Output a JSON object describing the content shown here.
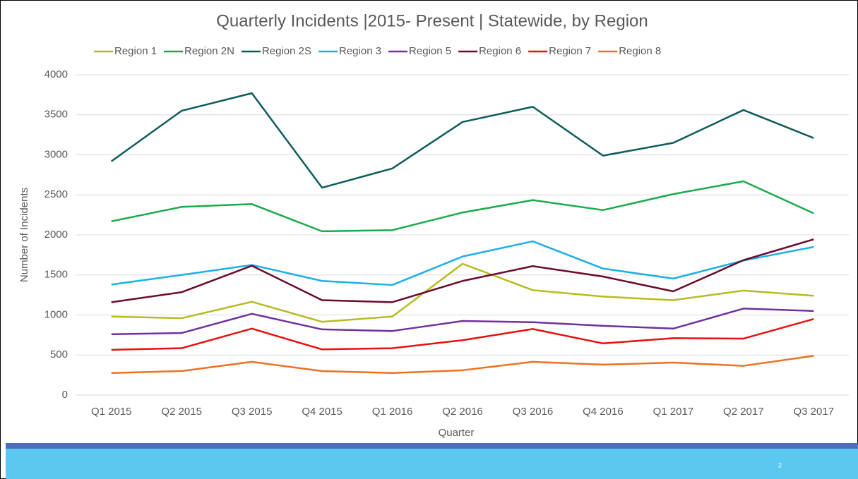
{
  "chart_data": {
    "type": "line",
    "title": "Quarterly Incidents |2015- Present | Statewide, by Region",
    "categories": [
      "Q1 2015",
      "Q2 2015",
      "Q3 2015",
      "Q4 2015",
      "Q1 2016",
      "Q2 2016",
      "Q3 2016",
      "Q4 2016",
      "Q1 2017",
      "Q2 2017",
      "Q3 2017"
    ],
    "series": [
      {
        "name": "Region 1",
        "color": "#b5bd1e",
        "values": [
          980,
          960,
          1165,
          915,
          980,
          1640,
          1310,
          1230,
          1185,
          1305,
          1240
        ]
      },
      {
        "name": "Region 2N",
        "color": "#1aab4b",
        "values": [
          2170,
          2350,
          2385,
          2045,
          2060,
          2280,
          2435,
          2310,
          2510,
          2670,
          2270
        ]
      },
      {
        "name": "Region 2S",
        "color": "#0e5c5c",
        "values": [
          2920,
          3550,
          3770,
          2590,
          2830,
          3410,
          3600,
          2990,
          3150,
          3560,
          3210
        ]
      },
      {
        "name": "Region 3",
        "color": "#1ab0e8",
        "values": [
          1380,
          1500,
          1625,
          1425,
          1375,
          1730,
          1920,
          1580,
          1455,
          1680,
          1850
        ]
      },
      {
        "name": "Region 5",
        "color": "#7030a0",
        "values": [
          760,
          775,
          1015,
          820,
          800,
          925,
          910,
          865,
          830,
          1080,
          1050
        ]
      },
      {
        "name": "Region 6",
        "color": "#6b0a2e",
        "values": [
          1160,
          1285,
          1615,
          1185,
          1160,
          1425,
          1610,
          1480,
          1295,
          1685,
          1945
        ]
      },
      {
        "name": "Region 7",
        "color": "#e81010",
        "values": [
          565,
          585,
          830,
          570,
          585,
          685,
          825,
          645,
          710,
          705,
          950
        ]
      },
      {
        "name": "Region 8",
        "color": "#f07020",
        "values": [
          275,
          300,
          415,
          300,
          275,
          310,
          415,
          380,
          405,
          365,
          490
        ]
      }
    ],
    "xlabel": "Quarter",
    "ylabel": "Number of Incidents",
    "ylim": [
      0,
      4000
    ],
    "yticks": [
      0,
      500,
      1000,
      1500,
      2000,
      2500,
      3000,
      3500,
      4000
    ],
    "grid": true,
    "legend": "top"
  },
  "page_number": "2"
}
